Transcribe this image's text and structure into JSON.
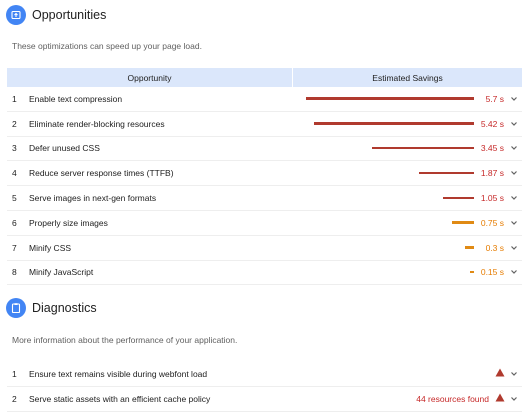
{
  "opportunities": {
    "title": "Opportunities",
    "description": "These optimizations can speed up your page load.",
    "col_opportunity": "Opportunity",
    "col_savings": "Estimated Savings",
    "max_seconds": 5.7,
    "items": [
      {
        "index": "1",
        "title": "Enable text compression",
        "savings": "5.7 s",
        "seconds": 5.7,
        "severity": "fail"
      },
      {
        "index": "2",
        "title": "Eliminate render-blocking resources",
        "savings": "5.42 s",
        "seconds": 5.42,
        "severity": "fail"
      },
      {
        "index": "3",
        "title": "Defer unused CSS",
        "savings": "3.45 s",
        "seconds": 3.45,
        "severity": "fail"
      },
      {
        "index": "4",
        "title": "Reduce server response times (TTFB)",
        "savings": "1.87 s",
        "seconds": 1.87,
        "severity": "fail"
      },
      {
        "index": "5",
        "title": "Serve images in next-gen formats",
        "savings": "1.05 s",
        "seconds": 1.05,
        "severity": "fail"
      },
      {
        "index": "6",
        "title": "Properly size images",
        "savings": "0.75 s",
        "seconds": 0.75,
        "severity": "average"
      },
      {
        "index": "7",
        "title": "Minify CSS",
        "savings": "0.3 s",
        "seconds": 0.3,
        "severity": "average"
      },
      {
        "index": "8",
        "title": "Minify JavaScript",
        "savings": "0.15 s",
        "seconds": 0.15,
        "severity": "average"
      }
    ]
  },
  "diagnostics": {
    "title": "Diagnostics",
    "description": "More information about the performance of your application.",
    "items": [
      {
        "index": "1",
        "title": "Ensure text remains visible during webfont load",
        "value": ""
      },
      {
        "index": "2",
        "title": "Serve static assets with an efficient cache policy",
        "value": "44 resources found"
      }
    ]
  },
  "colors": {
    "accent": "#4285f4",
    "fail": "#b03a2e",
    "fail_text": "#c62828",
    "average": "#e08a14",
    "average_text": "#e67c00",
    "header_bg": "#dbe7fb"
  }
}
